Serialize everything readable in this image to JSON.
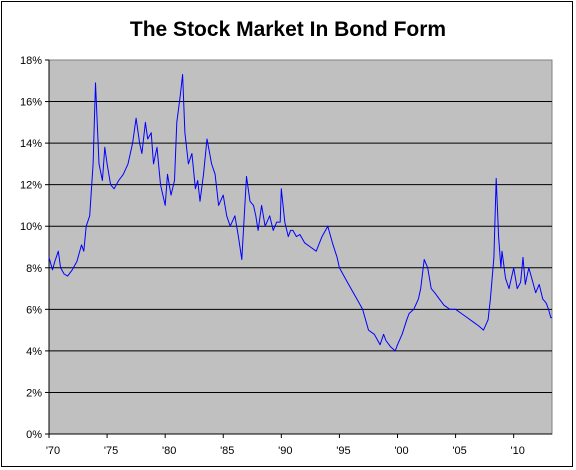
{
  "chart_data": {
    "type": "line",
    "title": "The Stock Market In Bond Form",
    "xlabel": "",
    "ylabel": "",
    "xlim": [
      1970,
      2013.3
    ],
    "ylim": [
      0,
      18
    ],
    "x_ticks": [
      1970,
      1975,
      1980,
      1985,
      1990,
      1995,
      2000,
      2005,
      2010
    ],
    "x_tick_labels": [
      "'70",
      "'75",
      "'80",
      "'85",
      "'90",
      "'95",
      "'00",
      "'05",
      "'10"
    ],
    "y_ticks": [
      0,
      2,
      4,
      6,
      8,
      10,
      12,
      14,
      16,
      18
    ],
    "y_tick_labels": [
      "0%",
      "2%",
      "4%",
      "6%",
      "8%",
      "10%",
      "12%",
      "14%",
      "16%",
      "18%"
    ],
    "grid": "horizontal",
    "plot_background": "#C0C0C0",
    "line_color": "#0000FF",
    "series": [
      {
        "x": [
          1970.0,
          1970.3,
          1970.5,
          1970.8,
          1971.0,
          1971.3,
          1971.6,
          1972.0,
          1972.4,
          1972.8,
          1973.0,
          1973.2,
          1973.5,
          1973.8,
          1974.0,
          1974.3,
          1974.6,
          1974.8,
          1975.0,
          1975.3,
          1975.6,
          1976.0,
          1976.4,
          1976.8,
          1977.2,
          1977.5,
          1977.8,
          1978.0,
          1978.3,
          1978.5,
          1978.8,
          1979.0,
          1979.3,
          1979.6,
          1980.0,
          1980.2,
          1980.5,
          1980.8,
          1981.0,
          1981.3,
          1981.5,
          1981.7,
          1982.0,
          1982.3,
          1982.6,
          1982.8,
          1983.0,
          1983.3,
          1983.6,
          1984.0,
          1984.3,
          1984.6,
          1985.0,
          1985.3,
          1985.6,
          1986.0,
          1986.3,
          1986.6,
          1987.0,
          1987.3,
          1987.6,
          1987.8,
          1988.0,
          1988.3,
          1988.6,
          1989.0,
          1989.3,
          1989.6,
          1989.9,
          1990.0,
          1990.3,
          1990.6,
          1990.8,
          1991.0,
          1991.3,
          1991.6,
          1992.0,
          1992.5,
          1993.0,
          1993.5,
          1994.0,
          1994.4,
          1994.8,
          1995.0,
          1995.5,
          1996.0,
          1996.5,
          1997.0,
          1997.5,
          1998.0,
          1998.5,
          1998.8,
          1999.0,
          1999.4,
          1999.8,
          2000.0,
          2000.4,
          2000.8,
          2001.0,
          2001.4,
          2001.8,
          2002.0,
          2002.3,
          2002.6,
          2002.9,
          2003.2,
          2003.6,
          2004.0,
          2004.5,
          2005.0,
          2005.5,
          2006.0,
          2006.5,
          2007.0,
          2007.4,
          2007.8,
          2008.0,
          2008.3,
          2008.5,
          2008.7,
          2008.9,
          2009.0,
          2009.3,
          2009.6,
          2010.0,
          2010.3,
          2010.6,
          2010.8,
          2011.0,
          2011.3,
          2011.6,
          2011.9,
          2012.2,
          2012.5,
          2012.8,
          2013.0,
          2013.2,
          2013.3
        ],
        "y": [
          8.5,
          7.9,
          8.3,
          8.8,
          8.0,
          7.7,
          7.6,
          7.9,
          8.3,
          9.1,
          8.8,
          10.0,
          10.5,
          13.0,
          16.9,
          13.0,
          12.2,
          13.8,
          13.0,
          12.0,
          11.8,
          12.2,
          12.5,
          13.0,
          14.0,
          15.2,
          14.0,
          13.5,
          15.0,
          14.2,
          14.5,
          13.0,
          13.8,
          12.0,
          11.0,
          12.5,
          11.5,
          12.2,
          15.0,
          16.3,
          17.3,
          14.5,
          13.0,
          13.5,
          11.8,
          12.2,
          11.2,
          12.5,
          14.2,
          13.0,
          12.5,
          11.0,
          11.5,
          10.5,
          10.0,
          10.5,
          9.5,
          8.4,
          12.4,
          11.2,
          11.0,
          10.5,
          9.8,
          11.0,
          10.0,
          10.5,
          9.8,
          10.2,
          10.2,
          11.8,
          10.2,
          9.5,
          9.8,
          9.8,
          9.5,
          9.6,
          9.2,
          9.0,
          8.8,
          9.5,
          10.0,
          9.2,
          8.5,
          8.0,
          7.5,
          7.0,
          6.5,
          6.0,
          5.0,
          4.8,
          4.3,
          4.8,
          4.5,
          4.2,
          4.0,
          4.3,
          4.8,
          5.5,
          5.8,
          6.0,
          6.5,
          7.0,
          8.4,
          8.0,
          7.0,
          6.8,
          6.5,
          6.2,
          6.0,
          6.0,
          5.8,
          5.6,
          5.4,
          5.2,
          5.0,
          5.5,
          6.5,
          8.5,
          12.3,
          9.5,
          8.0,
          8.8,
          7.5,
          7.0,
          8.0,
          7.0,
          7.3,
          8.5,
          7.2,
          8.0,
          7.4,
          6.8,
          7.2,
          6.5,
          6.3,
          6.0,
          5.6,
          5.6
        ]
      }
    ]
  }
}
